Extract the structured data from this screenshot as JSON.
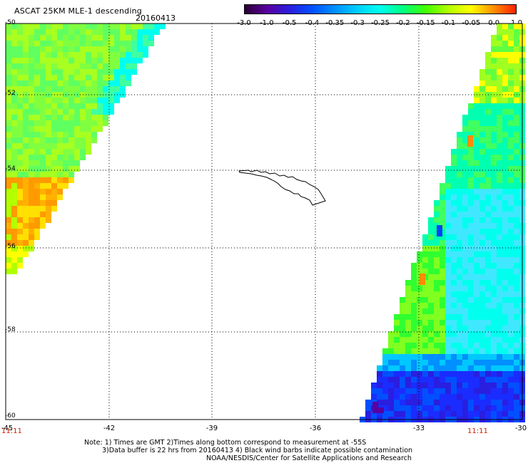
{
  "header": {
    "title": "ASCAT 25KM MLE-1 descending",
    "date": "20160413"
  },
  "colorbar": {
    "labels": [
      "-3.0",
      "-1.0",
      "-0.5",
      "-0.4",
      "-0.35",
      "-0.3",
      "-0.25",
      "-0.2",
      "-0.15",
      "-0.1",
      "-0.05",
      "0.0",
      "1.0"
    ],
    "colors": [
      "#2a0033",
      "#5a00a0",
      "#2a1ee0",
      "#0050ff",
      "#0090ff",
      "#00d0ff",
      "#00ffee",
      "#00ff80",
      "#40ff00",
      "#b0ff00",
      "#ffff00",
      "#ff9000",
      "#ff2000"
    ]
  },
  "axes": {
    "lon_labels": [
      "-45",
      "-42",
      "-39",
      "-36",
      "-33",
      "-30"
    ],
    "lat_labels": [
      "-50",
      "-52",
      "-54",
      "-56",
      "-58",
      "-60"
    ]
  },
  "times": {
    "left": "11:11",
    "right": "11:11"
  },
  "notes": {
    "line1": "Note: 1) Times are GMT 2)Times along bottom correspond to measurement at -55S",
    "line2": "3)Data buffer is 22 hrs from 20160413 4) Black wind barbs indicate possible contamination",
    "line3": "NOAA/NESDIS/Center for Satellite Applications and Research"
  }
}
